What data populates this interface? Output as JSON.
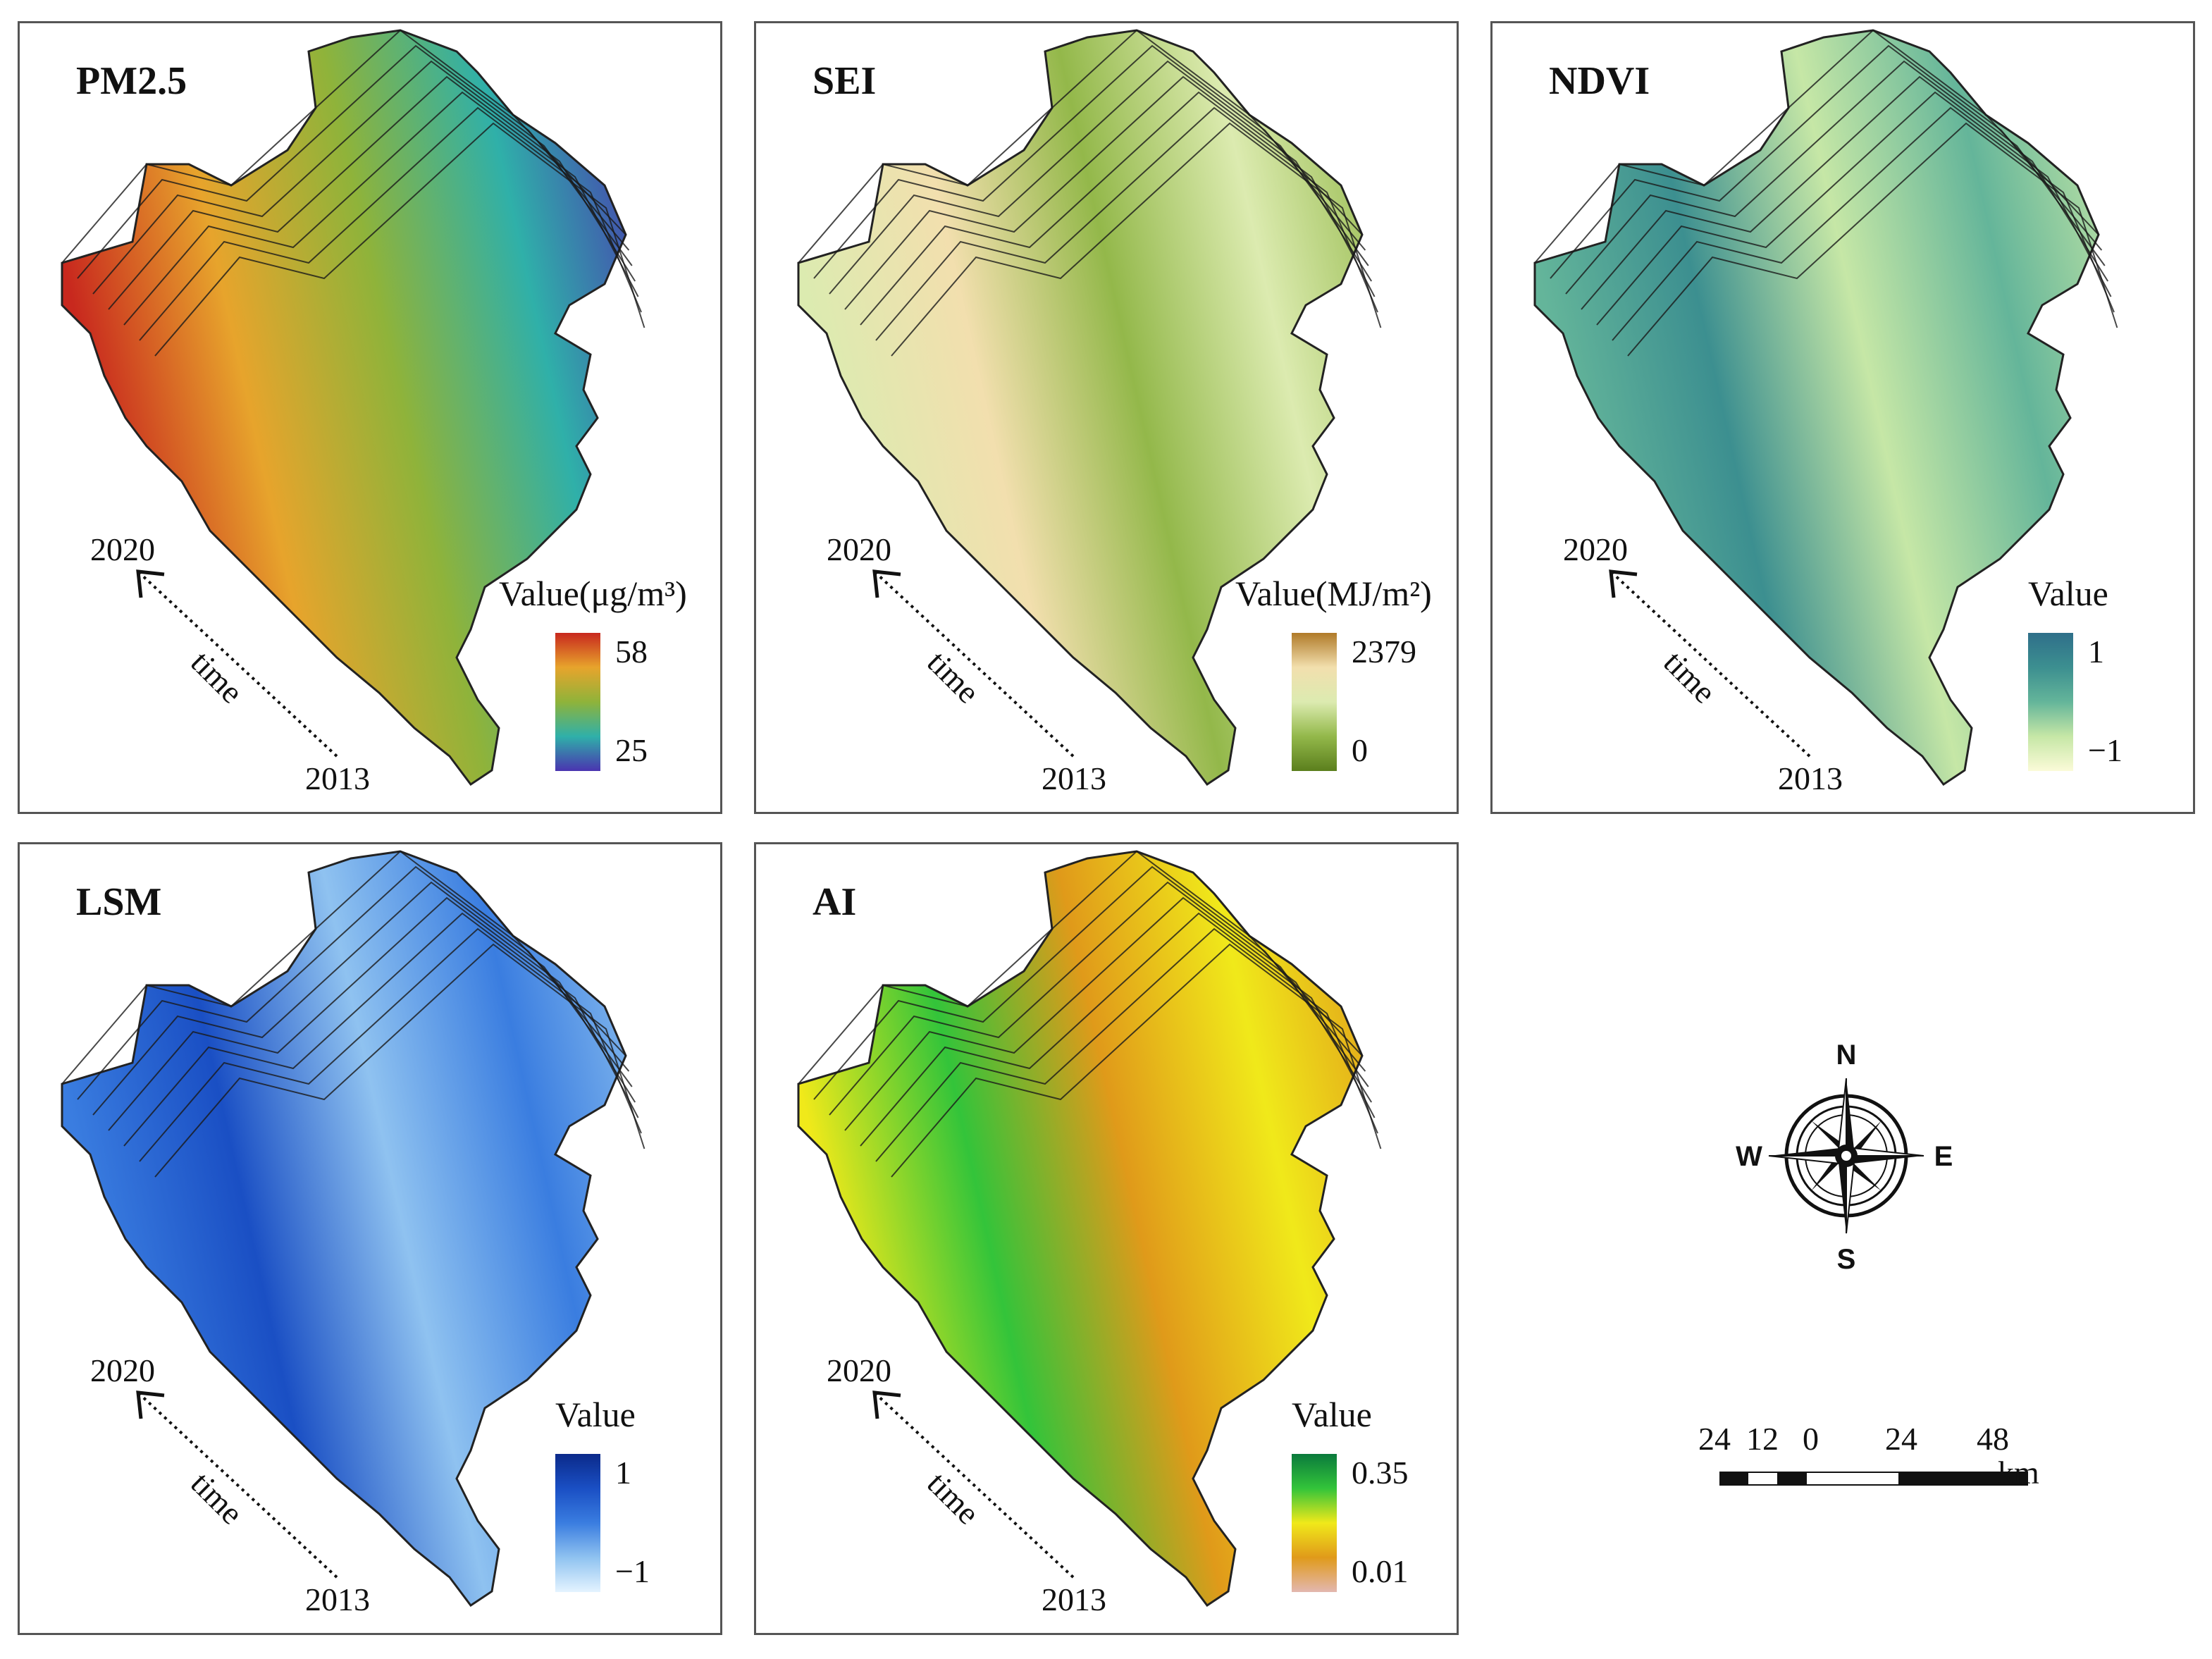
{
  "panels": [
    {
      "title": "PM2.5",
      "legend_title": "Value(μg/m³)",
      "max_label": "58",
      "min_label": "25",
      "colors": [
        "#c8281e",
        "#e7a42c",
        "#8fb33a",
        "#2fb0a9",
        "#4a34b0"
      ]
    },
    {
      "title": "SEI",
      "legend_title": "Value(MJ/m²)",
      "max_label": "2379",
      "min_label": "0",
      "colors": [
        "#b07a28",
        "#f2dfae",
        "#dcebb0",
        "#93b84a",
        "#5b7f1d"
      ]
    },
    {
      "title": "NDVI",
      "legend_title": "Value",
      "max_label": "1",
      "min_label": "−1",
      "colors": [
        "#2f6f8a",
        "#3c8f90",
        "#64b59a",
        "#c6e7a6",
        "#fbfbd8"
      ]
    },
    {
      "title": "LSM",
      "legend_title": "Value",
      "max_label": "1",
      "min_label": "−1",
      "colors": [
        "#0b2a8a",
        "#1a4fc4",
        "#3a7de0",
        "#8fc2f0",
        "#e4f3ff"
      ]
    },
    {
      "title": "AI",
      "legend_title": "Value",
      "max_label": "0.35",
      "min_label": "0.01",
      "colors": [
        "#0a7a3c",
        "#33c43a",
        "#f0e91a",
        "#e09a1a",
        "#e3b7b0"
      ]
    }
  ],
  "time_axis": {
    "start_year": "2013",
    "end_year": "2020",
    "label": "time"
  },
  "compass": {
    "n": "N",
    "s": "S",
    "e": "E",
    "w": "W"
  },
  "scale_bar": {
    "ticks": [
      "24",
      "12",
      "0",
      "24",
      "48"
    ],
    "unit": "km"
  }
}
